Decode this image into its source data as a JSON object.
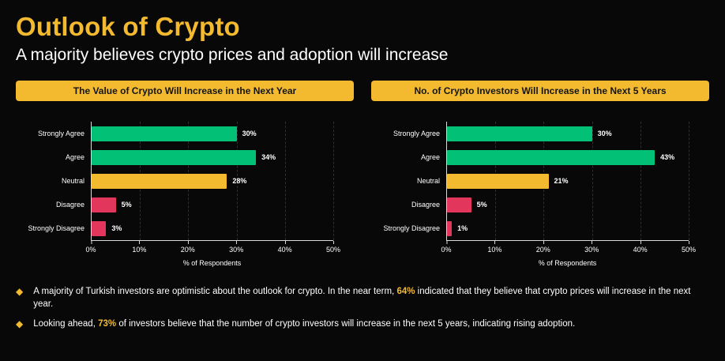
{
  "page": {
    "title": "Outlook of Crypto",
    "subtitle": "A majority believes crypto prices and adoption will increase"
  },
  "colors": {
    "background": "#080808",
    "accent_yellow": "#F3BA2F",
    "green": "#02C076",
    "red": "#E2365D",
    "text": "#FFFFFF"
  },
  "chart_data": [
    {
      "type": "bar",
      "orientation": "horizontal",
      "title": "The Value of Crypto Will Increase in the Next Year",
      "categories": [
        "Strongly Agree",
        "Agree",
        "Neutral",
        "Disagree",
        "Strongly Disagree"
      ],
      "values": [
        30,
        34,
        28,
        5,
        3
      ],
      "value_labels": [
        "30%",
        "34%",
        "28%",
        "5%",
        "3%"
      ],
      "bar_colors": [
        "#02C076",
        "#02C076",
        "#F3BA2F",
        "#E2365D",
        "#E2365D"
      ],
      "xlabel": "% of Respondents",
      "xlim": [
        0,
        50
      ],
      "tick_labels": [
        "0%",
        "10%",
        "20%",
        "30%",
        "40%",
        "50%"
      ],
      "tick_values": [
        0,
        10,
        20,
        30,
        40,
        50
      ],
      "grid": "dashed-vertical",
      "legend": "none"
    },
    {
      "type": "bar",
      "orientation": "horizontal",
      "title": "No. of Crypto Investors Will Increase in the Next 5 Years",
      "categories": [
        "Strongly Agree",
        "Agree",
        "Neutral",
        "Disagree",
        "Strongly Disagree"
      ],
      "values": [
        30,
        43,
        21,
        5,
        1
      ],
      "value_labels": [
        "30%",
        "43%",
        "21%",
        "5%",
        "1%"
      ],
      "bar_colors": [
        "#02C076",
        "#02C076",
        "#F3BA2F",
        "#E2365D",
        "#E2365D"
      ],
      "xlabel": "% of Respondents",
      "xlim": [
        0,
        50
      ],
      "tick_labels": [
        "0%",
        "10%",
        "20%",
        "30%",
        "40%",
        "50%"
      ],
      "tick_values": [
        0,
        10,
        20,
        30,
        40,
        50
      ],
      "grid": "dashed-vertical",
      "legend": "none"
    }
  ],
  "bullets": [
    {
      "marker": "◆",
      "before": "A majority of Turkish investors are optimistic about the outlook for crypto. In the near term, ",
      "highlight": "64%",
      "after": " indicated that they believe that crypto prices will increase in the next year."
    },
    {
      "marker": "◆",
      "before": "Looking ahead, ",
      "highlight": "73%",
      "after": " of investors believe that the number of crypto investors will increase in the next 5 years, indicating rising adoption."
    }
  ]
}
